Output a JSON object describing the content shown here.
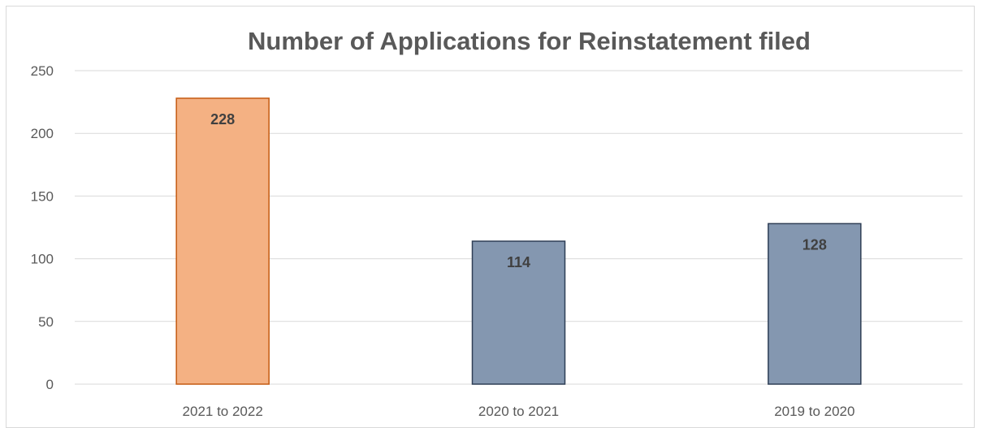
{
  "chart_data": {
    "type": "bar",
    "title": "Number of Applications for Reinstatement filed",
    "categories": [
      "2021 to 2022",
      "2020 to 2021",
      "2019 to 2020"
    ],
    "values": [
      228,
      114,
      128
    ],
    "data_labels": [
      "228",
      "114",
      "128"
    ],
    "xlabel": "",
    "ylabel": "",
    "ylim": [
      0,
      250
    ],
    "yticks": [
      0,
      50,
      100,
      150,
      200,
      250
    ],
    "grid": true,
    "legend": "none",
    "colors": {
      "highlight_fill": "#f4b183",
      "highlight_stroke": "#c55a11",
      "bar_fill": "#8497b0",
      "bar_stroke": "#2f3f56",
      "grid": "#d9d9d9",
      "text": "#595959",
      "label_text": "#404040"
    }
  }
}
